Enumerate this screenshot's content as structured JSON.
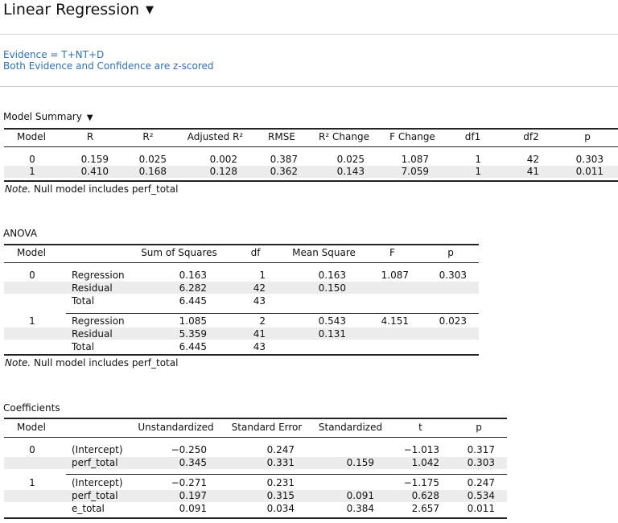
{
  "header": {
    "title": "Linear Regression",
    "dropdown_icon": "triangle-down-icon"
  },
  "notes": {
    "line1": "Evidence = T+NT+D",
    "line2": "Both Evidence and Confidence are z-scored"
  },
  "model_summary": {
    "title": "Model Summary",
    "headers": [
      "Model",
      "R",
      "R²",
      "Adjusted R²",
      "RMSE",
      "R² Change",
      "F Change",
      "df1",
      "df2",
      "p"
    ],
    "rows": [
      [
        "0",
        "0.159",
        "0.025",
        "0.002",
        "0.387",
        "0.025",
        "1.087",
        "1",
        "42",
        "0.303"
      ],
      [
        "1",
        "0.410",
        "0.168",
        "0.128",
        "0.362",
        "0.143",
        "7.059",
        "1",
        "41",
        "0.011"
      ]
    ],
    "note_label": "Note.",
    "note_text": " Null model includes perf_total"
  },
  "anova": {
    "title": "ANOVA",
    "headers": [
      "Model",
      "",
      "Sum of Squares",
      "df",
      "Mean Square",
      "F",
      "p"
    ],
    "groups": [
      {
        "model": "0",
        "rows": [
          [
            "Regression",
            "0.163",
            "1",
            "0.163",
            "1.087",
            "0.303"
          ],
          [
            "Residual",
            "6.282",
            "42",
            "0.150",
            "",
            ""
          ],
          [
            "Total",
            "6.445",
            "43",
            "",
            "",
            ""
          ]
        ]
      },
      {
        "model": "1",
        "rows": [
          [
            "Regression",
            "1.085",
            "2",
            "0.543",
            "4.151",
            "0.023"
          ],
          [
            "Residual",
            "5.359",
            "41",
            "0.131",
            "",
            ""
          ],
          [
            "Total",
            "6.445",
            "43",
            "",
            "",
            ""
          ]
        ]
      }
    ],
    "note_label": "Note.",
    "note_text": " Null model includes perf_total"
  },
  "coefficients": {
    "title": "Coefficients",
    "headers": [
      "Model",
      "",
      "Unstandardized",
      "Standard Error",
      "Standardized",
      "t",
      "p"
    ],
    "groups": [
      {
        "model": "0",
        "rows": [
          [
            "(Intercept)",
            "−0.250",
            "0.247",
            "",
            "−1.013",
            "0.317"
          ],
          [
            "perf_total",
            "0.345",
            "0.331",
            "0.159",
            "1.042",
            "0.303"
          ]
        ]
      },
      {
        "model": "1",
        "rows": [
          [
            "(Intercept)",
            "−0.271",
            "0.231",
            "",
            "−1.175",
            "0.247"
          ],
          [
            "perf_total",
            "0.197",
            "0.315",
            "0.091",
            "0.628",
            "0.534"
          ],
          [
            "e_total",
            "0.091",
            "0.034",
            "0.384",
            "2.657",
            "0.011"
          ]
        ]
      }
    ]
  }
}
